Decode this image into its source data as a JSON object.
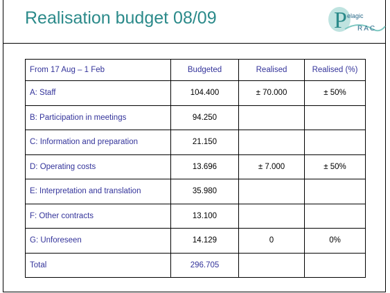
{
  "header": {
    "title": "Realisation budget 08/09",
    "logo": {
      "letter": "P",
      "text": "elagic",
      "subtext": "RAC"
    }
  },
  "table": {
    "columns": [
      "From 17 Aug – 1 Feb",
      "Budgeted",
      "Realised",
      "Realised (%)"
    ],
    "rows": [
      [
        "A: Staff",
        "104.400",
        "± 70.000",
        "± 50%"
      ],
      [
        "B: Participation in meetings",
        "94.250",
        null,
        null
      ],
      [
        "C: Information and preparation",
        "21.150",
        null,
        null
      ],
      [
        "D: Operating costs",
        "13.696",
        "± 7.000",
        "± 50%"
      ],
      [
        "E: Interpretation and translation",
        "35.980",
        null,
        null
      ],
      [
        "F: Other contracts",
        "13.100",
        null,
        null
      ],
      [
        "G: Unforeseen",
        "14.129",
        "0",
        "0%"
      ],
      [
        "Total",
        "296.705",
        null,
        null
      ]
    ]
  }
}
